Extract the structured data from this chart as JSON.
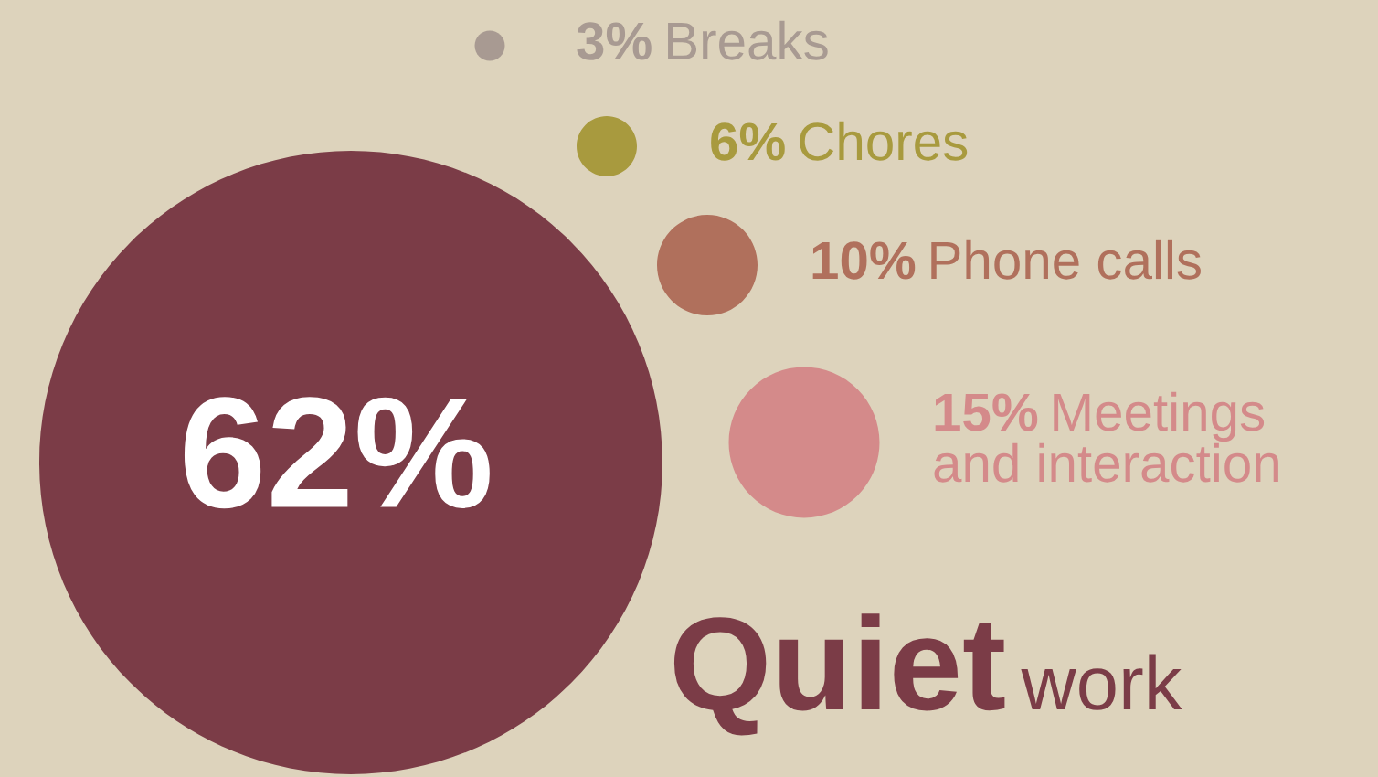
{
  "chart_data": {
    "type": "other",
    "categories": [
      "Breaks",
      "Chores",
      "Phone calls",
      "Meetings and interaction",
      "Quiet work"
    ],
    "values": [
      3,
      6,
      10,
      15,
      62
    ],
    "value_labels": [
      "3%",
      "6%",
      "10%",
      "15%",
      "62%"
    ],
    "colors": [
      "#a89a92",
      "#a89a3e",
      "#b0705c",
      "#d48a8a",
      "#7b3c47"
    ]
  }
}
